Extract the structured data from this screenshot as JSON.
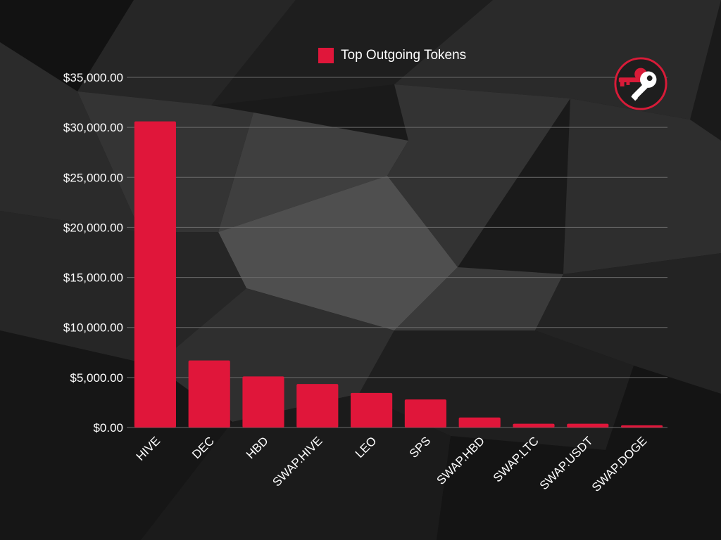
{
  "colors": {
    "bar": "#e0163a",
    "grid": "#6a6a6a",
    "text": "#ffffff",
    "logo_bg": "#1e1e1e",
    "logo_accent": "#d81b38"
  },
  "logo": {
    "icon": "keys-icon"
  },
  "chart_data": {
    "type": "bar",
    "title": "",
    "xlabel": "",
    "ylabel": "",
    "legend": {
      "label": "Top Outgoing Tokens",
      "position": "top-center"
    },
    "categories": [
      "HIVE",
      "DEC",
      "HBD",
      "SWAP.HIVE",
      "LEO",
      "SPS",
      "SWAP.HBD",
      "SWAP.LTC",
      "SWAP.USDT",
      "SWAP.DOGE"
    ],
    "values": [
      30600,
      6700,
      5100,
      4350,
      3450,
      2800,
      1000,
      380,
      380,
      220
    ],
    "ylim": [
      0,
      35000
    ],
    "yticks": [
      0,
      5000,
      10000,
      15000,
      20000,
      25000,
      30000,
      35000
    ],
    "ytick_labels": [
      "$0.00",
      "$5,000.00",
      "$10,000.00",
      "$15,000.00",
      "$20,000.00",
      "$25,000.00",
      "$30,000.00",
      "$35,000.00"
    ],
    "grid": true
  }
}
